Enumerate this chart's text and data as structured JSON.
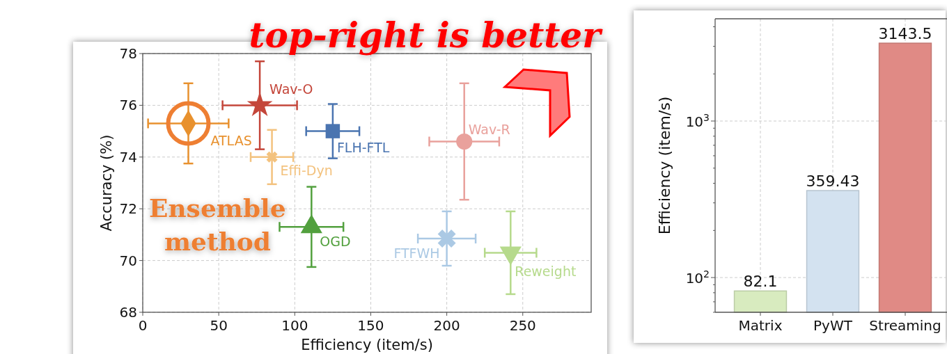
{
  "chart_data": [
    {
      "type": "scatter",
      "xlabel": "Efficiency (item/s)",
      "ylabel": "Accuracy (%)",
      "xlim": [
        0,
        295
      ],
      "ylim": [
        68,
        78
      ],
      "xticks": [
        0,
        50,
        100,
        150,
        200,
        250
      ],
      "yticks": [
        68,
        70,
        72,
        74,
        76,
        78
      ],
      "grid": true,
      "annotations": [
        "top-right is better",
        "Ensemble method"
      ],
      "series": [
        {
          "name": "ATLAS",
          "color": "#e8912e",
          "marker": "diamond",
          "x": [
            30
          ],
          "values": [
            75.3
          ],
          "errors": [
            1.55
          ],
          "xerrors": [
            26.5
          ]
        },
        {
          "name": "Wav-O",
          "color": "#c4463a",
          "marker": "star",
          "x": [
            77
          ],
          "values": [
            76.0
          ],
          "errors": [
            1.7
          ],
          "xerrors": [
            24.5
          ]
        },
        {
          "name": "FLH-FTL",
          "color": "#4a74b0",
          "marker": "square",
          "x": [
            125
          ],
          "values": [
            75.0
          ],
          "errors": [
            1.05
          ],
          "xerrors": [
            17.5
          ]
        },
        {
          "name": "Effi-Dyn",
          "color": "#f3c27e",
          "marker": "cross",
          "x": [
            85
          ],
          "values": [
            74.0
          ],
          "errors": [
            1.05
          ],
          "xerrors": [
            14
          ]
        },
        {
          "name": "OGD",
          "color": "#52a03e",
          "marker": "triangle",
          "x": [
            111
          ],
          "values": [
            71.3
          ],
          "errors": [
            1.55
          ],
          "xerrors": [
            21
          ]
        },
        {
          "name": "Wav-R",
          "color": "#e9a19c",
          "marker": "circle",
          "x": [
            211.5
          ],
          "values": [
            74.6
          ],
          "errors": [
            2.25
          ],
          "xerrors": [
            23
          ]
        },
        {
          "name": "FTFWH",
          "color": "#abc9e4",
          "marker": "cross",
          "x": [
            200
          ],
          "values": [
            70.85
          ],
          "errors": [
            1.05
          ],
          "xerrors": [
            19
          ]
        },
        {
          "name": "Reweight",
          "color": "#b6da8c",
          "marker": "triangle-down",
          "x": [
            242
          ],
          "values": [
            70.3
          ],
          "errors": [
            1.6
          ],
          "xerrors": [
            17
          ]
        }
      ]
    },
    {
      "type": "bar",
      "ylabel": "Efficiency (item/s)",
      "log": true,
      "grid": true,
      "data_labels": true,
      "categories": [
        "Matrix",
        "PyWT",
        "Streaming"
      ],
      "values": [
        82.1,
        359.43,
        3143.5
      ],
      "colors": [
        "#d8ebbf",
        "#d3e2f0",
        "#e08a85"
      ],
      "ylim": [
        60,
        4500
      ],
      "yticks": [
        {
          "value": 60,
          "label": null
        },
        {
          "value": 70,
          "label": null
        },
        {
          "value": 80,
          "label": null
        },
        {
          "value": 90,
          "label": null
        },
        {
          "value": 100,
          "label": "10$^{2}$"
        },
        {
          "value": 200,
          "label": null
        },
        {
          "value": 300,
          "label": null
        },
        {
          "value": 400,
          "label": null
        },
        {
          "value": 500,
          "label": null
        },
        {
          "value": 600,
          "label": null
        },
        {
          "value": 700,
          "label": null
        },
        {
          "value": 800,
          "label": null
        },
        {
          "value": 900,
          "label": null
        },
        {
          "value": 1000,
          "label": "10$^{3}$"
        },
        {
          "value": 2000,
          "label": null
        },
        {
          "value": 3000,
          "label": null
        },
        {
          "value": 4000,
          "label": null
        }
      ]
    }
  ]
}
